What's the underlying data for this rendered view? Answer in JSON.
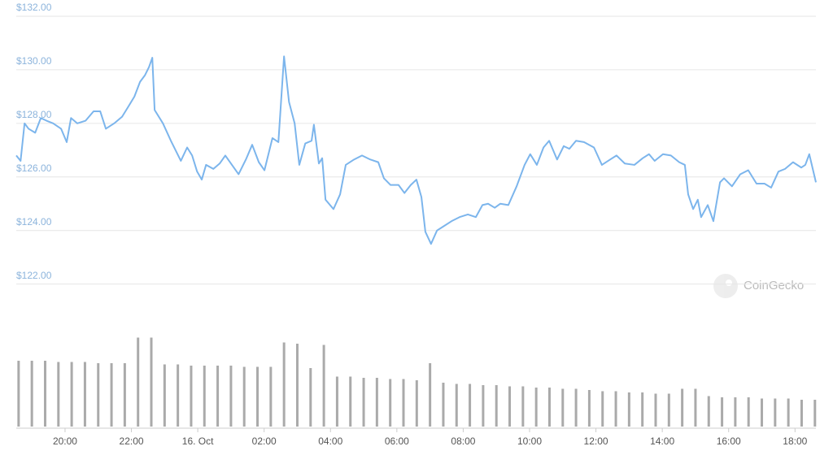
{
  "chart_data": {
    "type": "line",
    "color": "#7cb5ec",
    "grid": true,
    "xlim": [
      -5.47,
      18.63
    ],
    "xticks": [
      {
        "value": -4,
        "label": "20:00"
      },
      {
        "value": -2,
        "label": "22:00"
      },
      {
        "value": 0,
        "label": "16. Oct"
      },
      {
        "value": 2,
        "label": "02:00"
      },
      {
        "value": 4,
        "label": "04:00"
      },
      {
        "value": 6,
        "label": "06:00"
      },
      {
        "value": 8,
        "label": "08:00"
      },
      {
        "value": 10,
        "label": "10:00"
      },
      {
        "value": 12,
        "label": "12:00"
      },
      {
        "value": 14,
        "label": "14:00"
      },
      {
        "value": 16,
        "label": "16:00"
      },
      {
        "value": 18,
        "label": "18:00"
      }
    ],
    "ylim": [
      121.443,
      132.029
    ],
    "yticks": [
      {
        "value": 122,
        "label": "$122.00"
      },
      {
        "value": 124,
        "label": "$124.00"
      },
      {
        "value": 126,
        "label": "$126.00"
      },
      {
        "value": 128,
        "label": "$128.00"
      },
      {
        "value": 130,
        "label": "$130.00"
      },
      {
        "value": 132,
        "label": "$132.00"
      }
    ],
    "x": [
      -5.47,
      -5.34,
      -5.22,
      -5.1,
      -4.9,
      -4.73,
      -4.56,
      -4.36,
      -4.12,
      -3.95,
      -3.82,
      -3.63,
      -3.38,
      -3.14,
      -2.94,
      -2.77,
      -2.52,
      -2.28,
      -2.08,
      -1.91,
      -1.74,
      -1.59,
      -1.47,
      -1.37,
      -1.3,
      -1.05,
      -0.81,
      -0.51,
      -0.32,
      -0.17,
      -0.02,
      0.12,
      0.25,
      0.47,
      0.66,
      0.83,
      1.03,
      1.23,
      1.45,
      1.64,
      1.84,
      2.01,
      2.25,
      2.43,
      2.6,
      2.75,
      2.92,
      3.06,
      3.24,
      3.43,
      3.5,
      3.65,
      3.75,
      3.85,
      4.09,
      4.29,
      4.46,
      4.71,
      4.95,
      5.2,
      5.44,
      5.61,
      5.81,
      6.05,
      6.23,
      6.42,
      6.59,
      6.74,
      6.86,
      7.03,
      7.21,
      7.4,
      7.65,
      7.89,
      8.14,
      8.38,
      8.58,
      8.75,
      8.95,
      9.12,
      9.36,
      9.61,
      9.85,
      10.02,
      10.22,
      10.42,
      10.59,
      10.83,
      11.03,
      11.2,
      11.4,
      11.64,
      11.94,
      12.18,
      12.43,
      12.62,
      12.87,
      13.16,
      13.41,
      13.6,
      13.77,
      14.02,
      14.26,
      14.51,
      14.68,
      14.78,
      14.93,
      15.07,
      15.17,
      15.37,
      15.54,
      15.74,
      15.86,
      16.1,
      16.35,
      16.59,
      16.84,
      17.08,
      17.28,
      17.5,
      17.7,
      17.94,
      18.19,
      18.31,
      18.43,
      18.63
    ],
    "values": [
      126.8,
      126.6,
      128.0,
      127.8,
      127.65,
      128.2,
      128.1,
      128.0,
      127.8,
      127.3,
      128.2,
      128.0,
      128.1,
      128.45,
      128.45,
      127.8,
      128.0,
      128.25,
      128.65,
      129.0,
      129.55,
      129.8,
      130.1,
      130.45,
      128.5,
      128.0,
      127.35,
      126.6,
      127.1,
      126.8,
      126.2,
      125.9,
      126.45,
      126.3,
      126.5,
      126.8,
      126.45,
      126.1,
      126.65,
      127.2,
      126.55,
      126.25,
      127.45,
      127.3,
      130.5,
      128.8,
      128.0,
      126.45,
      127.25,
      127.35,
      127.95,
      126.5,
      126.7,
      125.15,
      124.8,
      125.35,
      126.45,
      126.65,
      126.8,
      126.65,
      126.55,
      125.95,
      125.7,
      125.7,
      125.4,
      125.7,
      125.9,
      125.25,
      123.95,
      123.5,
      124.0,
      124.15,
      124.35,
      124.5,
      124.6,
      124.5,
      124.95,
      125.0,
      124.85,
      125.0,
      124.95,
      125.65,
      126.45,
      126.85,
      126.45,
      127.1,
      127.35,
      126.65,
      127.15,
      127.05,
      127.35,
      127.3,
      127.1,
      126.45,
      126.65,
      126.8,
      126.5,
      126.45,
      126.7,
      126.85,
      126.6,
      126.85,
      126.8,
      126.55,
      126.45,
      125.35,
      124.8,
      125.15,
      124.5,
      124.95,
      124.35,
      125.8,
      125.95,
      125.65,
      126.1,
      126.25,
      125.75,
      125.75,
      125.6,
      126.2,
      126.3,
      126.55,
      126.35,
      126.45,
      126.85,
      125.8
    ],
    "volume": {
      "color": "#aaaaaa",
      "ylim": [
        0,
        100
      ],
      "x": [
        -5.4,
        -5.0,
        -4.6,
        -4.2,
        -3.8,
        -3.4,
        -3.0,
        -2.6,
        -2.2,
        -1.8,
        -1.4,
        -1.0,
        -0.6,
        -0.2,
        0.2,
        0.6,
        1.0,
        1.4,
        1.8,
        2.2,
        2.6,
        3.0,
        3.4,
        3.8,
        4.2,
        4.6,
        5.0,
        5.4,
        5.8,
        6.2,
        6.6,
        7.0,
        7.4,
        7.8,
        8.2,
        8.6,
        9.0,
        9.4,
        9.8,
        10.2,
        10.6,
        11.0,
        11.4,
        11.8,
        12.2,
        12.6,
        13.0,
        13.4,
        13.8,
        14.2,
        14.6,
        15.0,
        15.4,
        15.8,
        16.2,
        16.6,
        17.0,
        17.4,
        17.8,
        18.2,
        18.6
      ],
      "values": [
        54,
        54,
        54,
        53,
        53,
        53,
        52,
        52,
        52,
        73,
        73,
        51,
        51,
        50,
        50,
        50,
        50,
        49,
        49,
        49,
        69,
        68,
        48,
        67,
        41,
        41,
        40,
        40,
        39,
        39,
        38,
        52,
        36,
        35,
        35,
        34,
        34,
        33,
        33,
        32,
        32,
        31,
        31,
        30,
        29,
        29,
        28,
        28,
        27,
        27,
        31,
        31,
        25,
        24,
        24,
        24,
        23,
        23,
        23,
        22,
        22
      ]
    },
    "watermark": "CoinGecko"
  }
}
